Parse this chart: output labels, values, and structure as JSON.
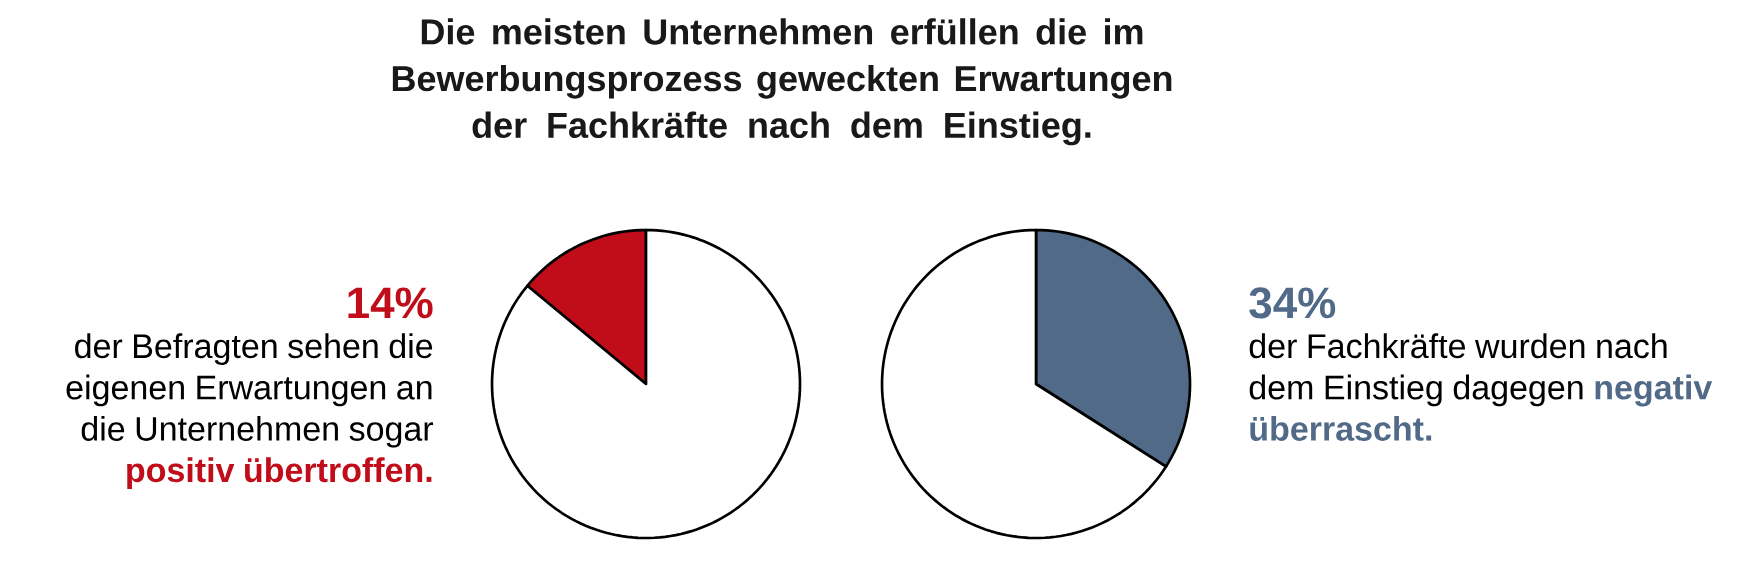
{
  "chart_data": [
    {
      "type": "pie",
      "title": "Die meisten Unternehmen erfüllen die im Bewerbungsprozess geweckten Erwartungen der Fachkräfte nach dem Einstieg.",
      "categories": [
        null,
        null
      ],
      "values": [
        14,
        86
      ],
      "colors": [
        "#c00d19",
        "#ffffff"
      ],
      "annotations": [
        "14%",
        "der Befragten sehen die eigenen Erwartungen an die Unternehmen sogar",
        "positiv übertroffen."
      ]
    },
    {
      "type": "pie",
      "categories": [
        null,
        null
      ],
      "values": [
        34,
        66
      ],
      "colors": [
        "#506a88",
        "#ffffff"
      ],
      "annotations": [
        "34%",
        "der Fachkräfte wurden nach dem Einstieg dagegen",
        "negativ überrascht."
      ]
    }
  ]
}
